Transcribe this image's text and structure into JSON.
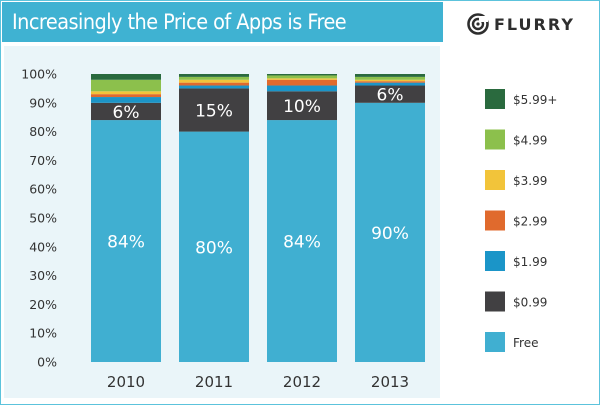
{
  "header": {
    "title": "Increasingly the Price of Apps is Free",
    "logo_text": "FLURRY",
    "logo_icon": "flurry-swirl-icon"
  },
  "colors": {
    "title_bar": "#3fb2d2",
    "frame": "#5cc3dc",
    "chart_background": "#eaf5f9"
  },
  "chart_data": {
    "type": "bar",
    "stacked": true,
    "categories": [
      "2010",
      "2011",
      "2012",
      "2013"
    ],
    "ylim": [
      0,
      100
    ],
    "y_ticks": [
      "0%",
      "10%",
      "20%",
      "30%",
      "40%",
      "50%",
      "60%",
      "70%",
      "80%",
      "90%",
      "100%"
    ],
    "grid": false,
    "legend_position": "right",
    "series": [
      {
        "name": "Free",
        "color": "#40afd1",
        "values": [
          84,
          80,
          84,
          90
        ],
        "labels": [
          "84%",
          "80%",
          "84%",
          "90%"
        ]
      },
      {
        "name": "$0.99",
        "color": "#414042",
        "values": [
          6,
          15,
          10,
          6
        ],
        "labels": [
          "6%",
          "15%",
          "10%",
          "6%"
        ]
      },
      {
        "name": "$1.99",
        "color": "#1b95c8",
        "values": [
          2,
          1,
          2,
          1
        ]
      },
      {
        "name": "$2.99",
        "color": "#e06a2d",
        "values": [
          1,
          1,
          2,
          0.5
        ]
      },
      {
        "name": "$3.99",
        "color": "#f2c43a",
        "values": [
          1,
          1,
          0.5,
          0.5
        ]
      },
      {
        "name": "$4.99",
        "color": "#8cc04c",
        "values": [
          4,
          1,
          1,
          1
        ]
      },
      {
        "name": "$5.99+",
        "color": "#2a6a3e",
        "values": [
          2,
          1,
          0.5,
          1
        ]
      }
    ]
  }
}
